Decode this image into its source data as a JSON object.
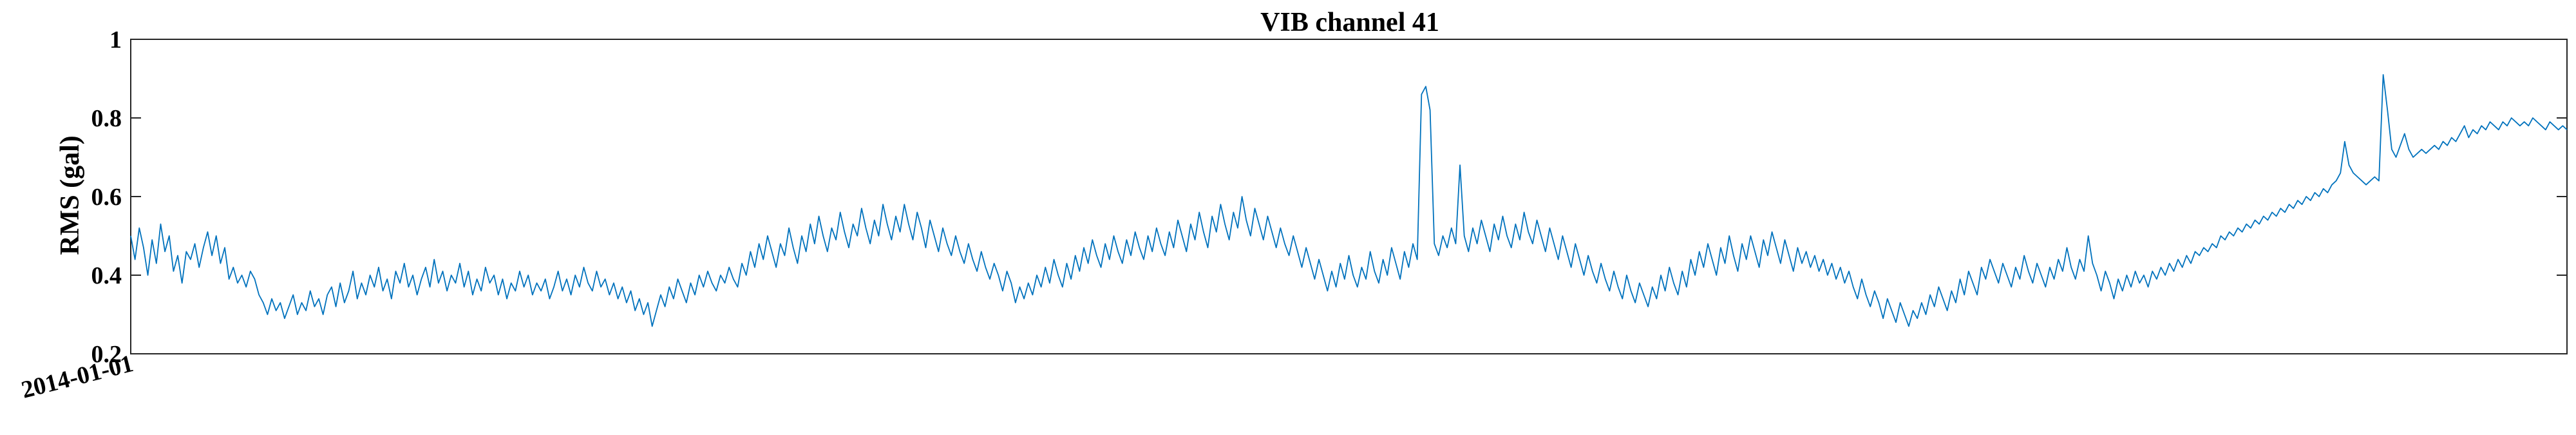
{
  "chart_data": {
    "type": "line",
    "title": "VIB channel 41",
    "xlabel": "",
    "ylabel": "RMS (gal)",
    "ylim": [
      0.2,
      1
    ],
    "yticks": [
      0.2,
      0.4,
      0.6,
      0.8,
      1
    ],
    "ytick_labels": [
      "0.2",
      "0.4",
      "0.6",
      "0.8",
      "1"
    ],
    "xtick_labels": [
      "2014-01-01"
    ],
    "grid": false,
    "legend": "none",
    "line_color": "#0072bd",
    "series": [
      {
        "x_start": "2014-01-01",
        "x_step_days": 1,
        "values": [
          0.5,
          0.44,
          0.52,
          0.47,
          0.4,
          0.49,
          0.43,
          0.53,
          0.46,
          0.5,
          0.41,
          0.45,
          0.38,
          0.46,
          0.44,
          0.48,
          0.42,
          0.47,
          0.51,
          0.45,
          0.5,
          0.43,
          0.47,
          0.39,
          0.42,
          0.38,
          0.4,
          0.37,
          0.41,
          0.39,
          0.35,
          0.33,
          0.3,
          0.34,
          0.31,
          0.33,
          0.29,
          0.32,
          0.35,
          0.3,
          0.33,
          0.31,
          0.36,
          0.32,
          0.34,
          0.3,
          0.35,
          0.37,
          0.32,
          0.38,
          0.33,
          0.36,
          0.41,
          0.34,
          0.38,
          0.35,
          0.4,
          0.37,
          0.42,
          0.36,
          0.39,
          0.34,
          0.41,
          0.38,
          0.43,
          0.37,
          0.4,
          0.35,
          0.39,
          0.42,
          0.37,
          0.44,
          0.38,
          0.41,
          0.36,
          0.4,
          0.38,
          0.43,
          0.37,
          0.41,
          0.35,
          0.39,
          0.36,
          0.42,
          0.38,
          0.4,
          0.35,
          0.39,
          0.34,
          0.38,
          0.36,
          0.41,
          0.37,
          0.4,
          0.35,
          0.38,
          0.36,
          0.39,
          0.34,
          0.37,
          0.41,
          0.36,
          0.39,
          0.35,
          0.4,
          0.37,
          0.42,
          0.38,
          0.36,
          0.41,
          0.37,
          0.39,
          0.35,
          0.38,
          0.34,
          0.37,
          0.33,
          0.36,
          0.31,
          0.34,
          0.3,
          0.33,
          0.27,
          0.31,
          0.35,
          0.32,
          0.37,
          0.34,
          0.39,
          0.36,
          0.33,
          0.38,
          0.35,
          0.4,
          0.37,
          0.41,
          0.38,
          0.36,
          0.4,
          0.38,
          0.42,
          0.39,
          0.37,
          0.43,
          0.4,
          0.46,
          0.42,
          0.48,
          0.44,
          0.5,
          0.46,
          0.42,
          0.48,
          0.45,
          0.52,
          0.47,
          0.43,
          0.5,
          0.46,
          0.53,
          0.48,
          0.55,
          0.5,
          0.46,
          0.52,
          0.49,
          0.56,
          0.51,
          0.47,
          0.53,
          0.5,
          0.57,
          0.52,
          0.48,
          0.54,
          0.5,
          0.58,
          0.53,
          0.49,
          0.55,
          0.51,
          0.58,
          0.53,
          0.49,
          0.56,
          0.52,
          0.47,
          0.54,
          0.5,
          0.46,
          0.52,
          0.48,
          0.45,
          0.5,
          0.46,
          0.43,
          0.48,
          0.44,
          0.41,
          0.46,
          0.42,
          0.39,
          0.43,
          0.4,
          0.36,
          0.41,
          0.38,
          0.33,
          0.37,
          0.34,
          0.38,
          0.35,
          0.4,
          0.37,
          0.42,
          0.38,
          0.44,
          0.4,
          0.37,
          0.43,
          0.39,
          0.45,
          0.41,
          0.47,
          0.43,
          0.49,
          0.45,
          0.42,
          0.48,
          0.44,
          0.5,
          0.46,
          0.43,
          0.49,
          0.45,
          0.51,
          0.47,
          0.44,
          0.5,
          0.46,
          0.52,
          0.48,
          0.45,
          0.51,
          0.47,
          0.54,
          0.5,
          0.46,
          0.53,
          0.49,
          0.56,
          0.51,
          0.47,
          0.55,
          0.51,
          0.58,
          0.53,
          0.49,
          0.56,
          0.52,
          0.6,
          0.54,
          0.5,
          0.57,
          0.53,
          0.49,
          0.55,
          0.51,
          0.47,
          0.52,
          0.48,
          0.45,
          0.5,
          0.46,
          0.42,
          0.47,
          0.43,
          0.39,
          0.44,
          0.4,
          0.36,
          0.41,
          0.37,
          0.43,
          0.39,
          0.45,
          0.4,
          0.37,
          0.42,
          0.39,
          0.46,
          0.41,
          0.38,
          0.44,
          0.4,
          0.47,
          0.43,
          0.39,
          0.46,
          0.42,
          0.48,
          0.44,
          0.86,
          0.88,
          0.82,
          0.48,
          0.45,
          0.5,
          0.47,
          0.52,
          0.48,
          0.68,
          0.5,
          0.46,
          0.52,
          0.48,
          0.54,
          0.5,
          0.46,
          0.53,
          0.49,
          0.55,
          0.5,
          0.47,
          0.53,
          0.49,
          0.56,
          0.51,
          0.48,
          0.54,
          0.5,
          0.46,
          0.52,
          0.48,
          0.44,
          0.5,
          0.46,
          0.42,
          0.48,
          0.44,
          0.4,
          0.45,
          0.41,
          0.38,
          0.43,
          0.39,
          0.36,
          0.41,
          0.37,
          0.34,
          0.4,
          0.36,
          0.33,
          0.38,
          0.35,
          0.32,
          0.37,
          0.34,
          0.4,
          0.36,
          0.42,
          0.38,
          0.35,
          0.41,
          0.37,
          0.44,
          0.4,
          0.46,
          0.42,
          0.48,
          0.44,
          0.4,
          0.47,
          0.43,
          0.5,
          0.45,
          0.41,
          0.48,
          0.44,
          0.5,
          0.46,
          0.42,
          0.49,
          0.45,
          0.51,
          0.47,
          0.43,
          0.49,
          0.45,
          0.41,
          0.47,
          0.43,
          0.46,
          0.42,
          0.45,
          0.41,
          0.44,
          0.4,
          0.43,
          0.39,
          0.42,
          0.38,
          0.41,
          0.37,
          0.34,
          0.39,
          0.35,
          0.32,
          0.36,
          0.33,
          0.29,
          0.34,
          0.31,
          0.28,
          0.33,
          0.3,
          0.27,
          0.31,
          0.29,
          0.33,
          0.3,
          0.35,
          0.32,
          0.37,
          0.34,
          0.31,
          0.36,
          0.33,
          0.39,
          0.35,
          0.41,
          0.38,
          0.35,
          0.42,
          0.39,
          0.44,
          0.41,
          0.38,
          0.43,
          0.4,
          0.37,
          0.42,
          0.39,
          0.45,
          0.41,
          0.38,
          0.43,
          0.4,
          0.37,
          0.42,
          0.39,
          0.44,
          0.41,
          0.47,
          0.42,
          0.39,
          0.44,
          0.41,
          0.5,
          0.43,
          0.4,
          0.36,
          0.41,
          0.38,
          0.34,
          0.39,
          0.36,
          0.4,
          0.37,
          0.41,
          0.38,
          0.4,
          0.37,
          0.41,
          0.39,
          0.42,
          0.4,
          0.43,
          0.41,
          0.44,
          0.42,
          0.45,
          0.43,
          0.46,
          0.45,
          0.47,
          0.46,
          0.48,
          0.47,
          0.5,
          0.49,
          0.51,
          0.5,
          0.52,
          0.51,
          0.53,
          0.52,
          0.54,
          0.53,
          0.55,
          0.54,
          0.56,
          0.55,
          0.57,
          0.56,
          0.58,
          0.57,
          0.59,
          0.58,
          0.6,
          0.59,
          0.61,
          0.6,
          0.62,
          0.61,
          0.63,
          0.64,
          0.66,
          0.74,
          0.68,
          0.66,
          0.65,
          0.64,
          0.63,
          0.64,
          0.65,
          0.64,
          0.91,
          0.82,
          0.72,
          0.7,
          0.73,
          0.76,
          0.72,
          0.7,
          0.71,
          0.72,
          0.71,
          0.72,
          0.73,
          0.72,
          0.74,
          0.73,
          0.75,
          0.74,
          0.76,
          0.78,
          0.75,
          0.77,
          0.76,
          0.78,
          0.77,
          0.79,
          0.78,
          0.77,
          0.79,
          0.78,
          0.8,
          0.79,
          0.78,
          0.79,
          0.78,
          0.8,
          0.79,
          0.78,
          0.77,
          0.79,
          0.78,
          0.77,
          0.78,
          0.77
        ]
      }
    ]
  }
}
